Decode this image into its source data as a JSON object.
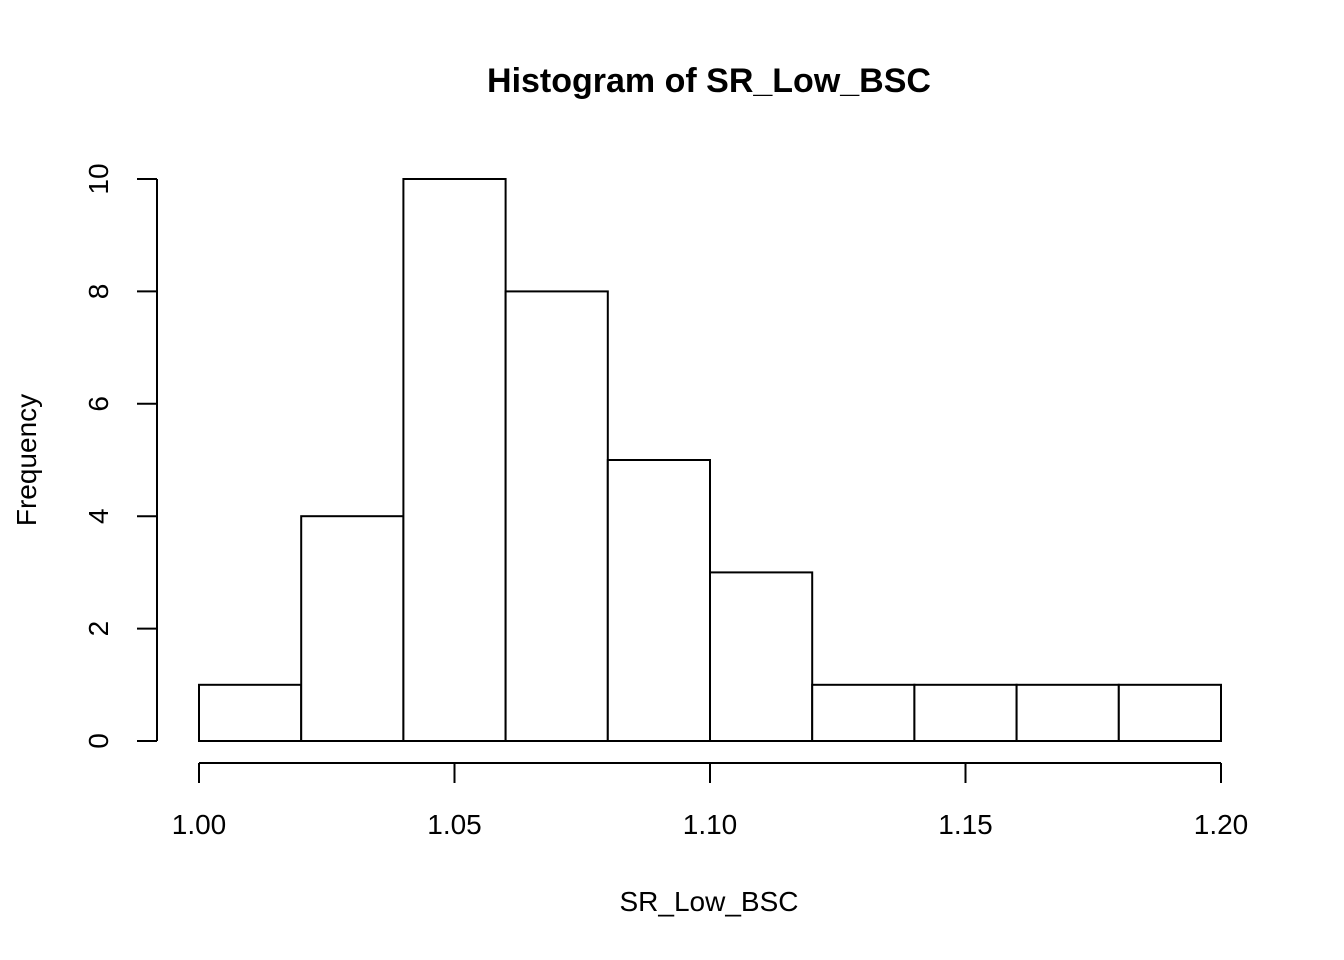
{
  "chart_data": {
    "type": "bar",
    "title": "Histogram of SR_Low_BSC",
    "xlabel": "SR_Low_BSC",
    "ylabel": "Frequency",
    "bin_edges": [
      1.0,
      1.02,
      1.04,
      1.06,
      1.08,
      1.1,
      1.12,
      1.14,
      1.16,
      1.18,
      1.2
    ],
    "values": [
      1,
      4,
      10,
      8,
      5,
      3,
      1,
      1,
      1,
      1
    ],
    "xlim": [
      1.0,
      1.2
    ],
    "ylim": [
      0,
      10
    ],
    "x_ticks": [
      "1.00",
      "1.05",
      "1.10",
      "1.15",
      "1.20"
    ],
    "y_ticks": [
      "0",
      "2",
      "4",
      "6",
      "8",
      "10"
    ],
    "grid": false,
    "colors": {
      "bar_fill": "#ffffff",
      "bar_stroke": "#000000"
    }
  }
}
